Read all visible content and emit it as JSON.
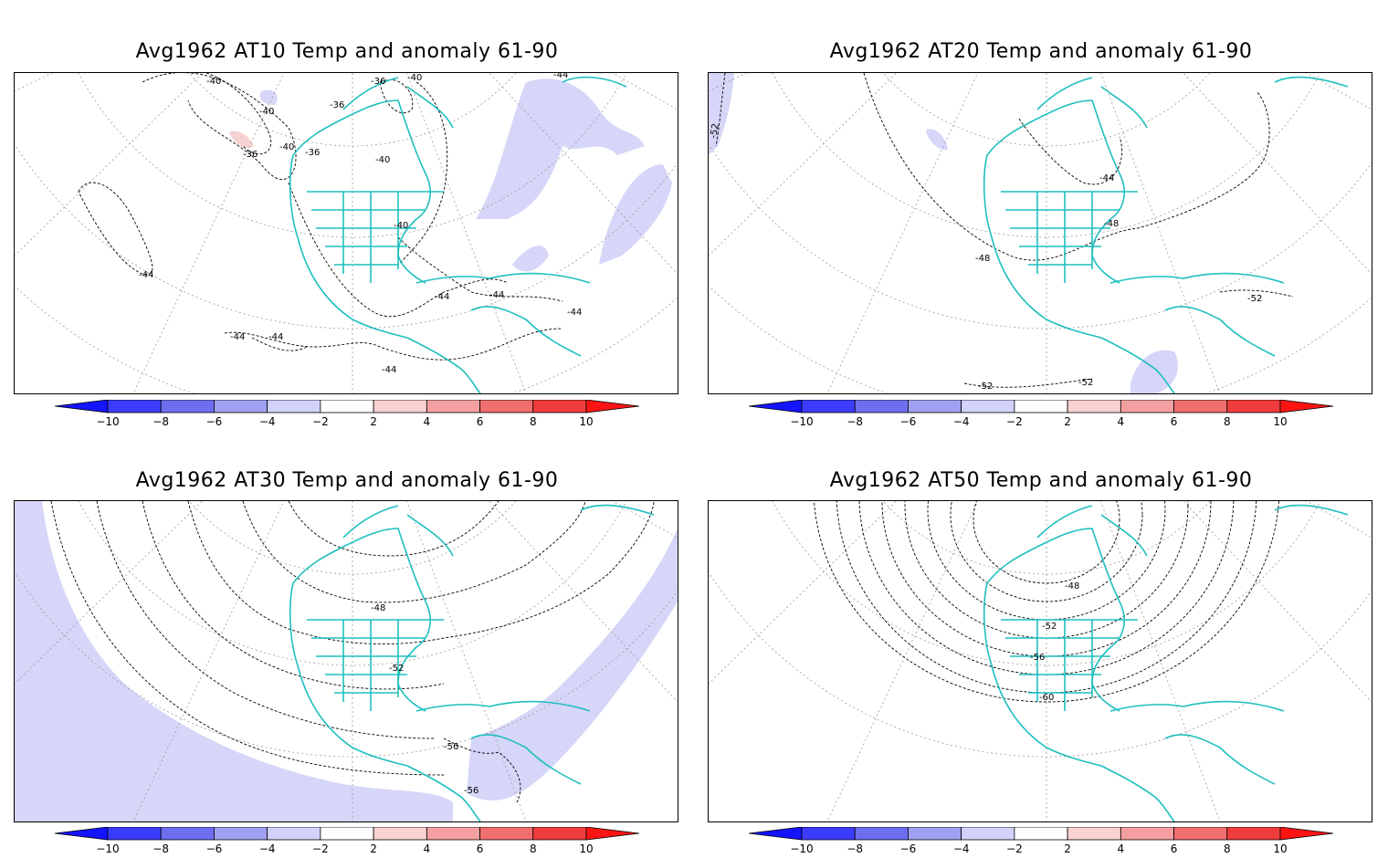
{
  "colorbar": {
    "ticks": [
      "−10",
      "−8",
      "−6",
      "−4",
      "−2",
      "2",
      "4",
      "6",
      "8",
      "10"
    ],
    "colors": [
      "#1414ff",
      "#3c3cff",
      "#6e6ef0",
      "#a0a0f0",
      "#d2d2fa",
      "#ffffff",
      "#fad2d2",
      "#f5a0a0",
      "#f06e6e",
      "#f03c3c",
      "#ff1414"
    ]
  },
  "panels": [
    {
      "id": "at10",
      "title": "Avg1962 AT10 Temp and anomaly 61-90",
      "contour_labels": [
        "-40",
        "-36",
        "-40",
        "-36",
        "-40",
        "-36",
        "-40",
        "-36",
        "-40",
        "-40",
        "-44",
        "-44",
        "-44",
        "-44",
        "-44",
        "-44",
        "-44",
        "-44"
      ]
    },
    {
      "id": "at20",
      "title": "Avg1962 AT20 Temp and anomaly 61-90",
      "contour_labels": [
        "-52",
        "-44",
        "-48",
        "-48",
        "-52",
        "-52",
        "-52"
      ]
    },
    {
      "id": "at30",
      "title": "Avg1962 AT30 Temp and anomaly 61-90",
      "contour_labels": [
        "-48",
        "-52",
        "-56",
        "-56"
      ]
    },
    {
      "id": "at50",
      "title": "Avg1962 AT50 Temp and anomaly 61-90",
      "contour_labels": [
        "-48",
        "-52",
        "-56",
        "-60"
      ]
    }
  ],
  "colors": {
    "coast": "#1fbfbf",
    "contour": "#000000",
    "grid": "#9a9a9a",
    "anomaly_neg": "#d6d6f8",
    "anomaly_pos": "#f6d2d2"
  }
}
